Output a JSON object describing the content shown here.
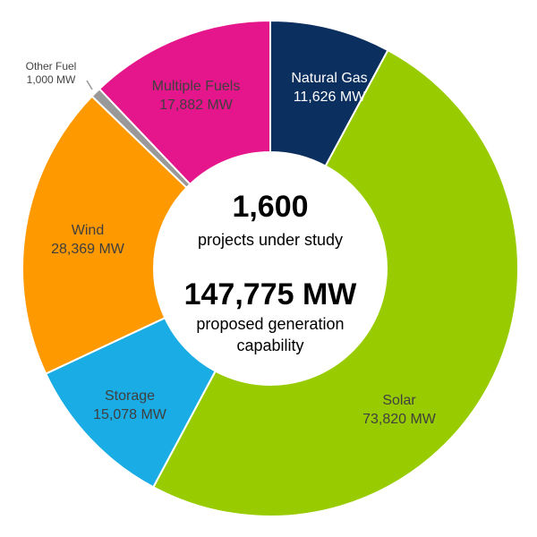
{
  "chart_data": {
    "type": "pie",
    "style": "donut",
    "slices": [
      {
        "name": "Natural Gas",
        "value": 11626,
        "value_label": "11,626 MW",
        "color": "#0B2F5E",
        "text_color": "#FFFFFF"
      },
      {
        "name": "Solar",
        "value": 73820,
        "value_label": "73,820 MW",
        "color": "#99CC00",
        "text_color": "#3F3F3F"
      },
      {
        "name": "Storage",
        "value": 15078,
        "value_label": "15,078 MW",
        "color": "#1AACE5",
        "text_color": "#3F3F3F"
      },
      {
        "name": "Wind",
        "value": 28369,
        "value_label": "28,369 MW",
        "color": "#FF9900",
        "text_color": "#3F3F3F"
      },
      {
        "name": "Other Fuel",
        "value": 1000,
        "value_label": "1,000 MW",
        "color": "#999999",
        "text_color": "#444444"
      },
      {
        "name": "Multiple Fuels",
        "value": 17882,
        "value_label": "17,882 MW",
        "color": "#E5158B",
        "text_color": "#3F3F3F"
      }
    ],
    "center": {
      "count": "1,600",
      "count_label": "projects under study",
      "total": "147,775 MW",
      "total_label_line1": "proposed generation",
      "total_label_line2": "capability"
    }
  }
}
